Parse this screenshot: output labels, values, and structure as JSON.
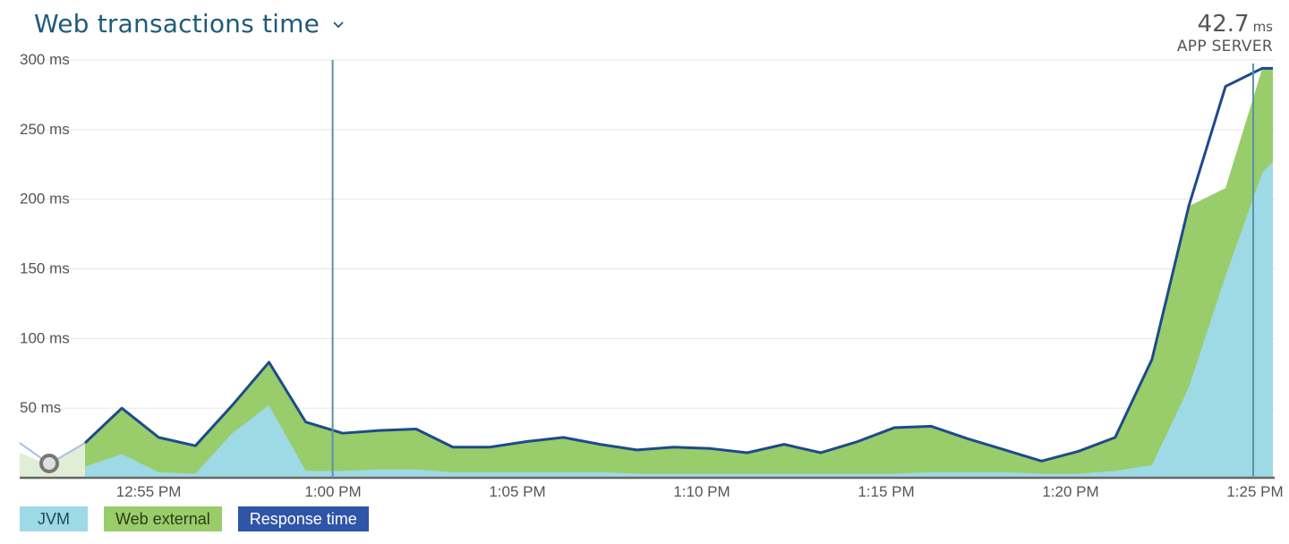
{
  "header": {
    "title": "Web transactions time"
  },
  "summary": {
    "value": "42.7",
    "unit": "ms",
    "label": "APP SERVER"
  },
  "legend": [
    {
      "label": "JVM",
      "color": "#9ed9e6"
    },
    {
      "label": "Web external",
      "color": "#99cc6a"
    },
    {
      "label": "Response time",
      "color": "#2f55a8"
    }
  ],
  "chart_data": {
    "type": "area",
    "ylim": [
      0,
      300
    ],
    "y_ticks": [
      "300 ms",
      "250 ms",
      "200 ms",
      "150 ms",
      "100 ms",
      "50 ms"
    ],
    "x_ticks": [
      "12:55 PM",
      "1:00 PM",
      "1:05 PM",
      "1:10 PM",
      "1:15 PM",
      "1:20 PM",
      "1:25 PM"
    ],
    "x": [
      "12:53",
      "12:54",
      "12:55",
      "12:56",
      "12:57",
      "12:58",
      "12:59",
      "1:00",
      "1:01",
      "1:02",
      "1:03",
      "1:04",
      "1:05",
      "1:06",
      "1:07",
      "1:08",
      "1:09",
      "1:10",
      "1:11",
      "1:12",
      "1:13",
      "1:14",
      "1:15",
      "1:16",
      "1:17",
      "1:18",
      "1:19",
      "1:20",
      "1:21",
      "1:22",
      "1:23",
      "1:24",
      "1:25",
      "1:26"
    ],
    "series": [
      {
        "name": "JVM",
        "values": [
          8,
          17,
          4,
          3,
          32,
          52,
          5,
          5,
          6,
          6,
          4,
          4,
          4,
          4,
          4,
          3,
          3,
          3,
          3,
          3,
          3,
          3,
          3,
          4,
          4,
          4,
          3,
          3,
          5,
          9,
          65,
          145,
          219,
          227
        ]
      },
      {
        "name": "Web external",
        "values": [
          17,
          33,
          25,
          20,
          20,
          31,
          35,
          27,
          28,
          29,
          18,
          18,
          22,
          25,
          20,
          17,
          19,
          18,
          15,
          21,
          15,
          23,
          33,
          33,
          24,
          16,
          9,
          16,
          24,
          76,
          130,
          63,
          75,
          67
        ]
      },
      {
        "name": "Response time",
        "values": [
          25,
          50,
          29,
          23,
          52,
          83,
          40,
          32,
          34,
          35,
          22,
          22,
          26,
          29,
          24,
          20,
          22,
          21,
          18,
          24,
          18,
          26,
          36,
          37,
          28,
          20,
          12,
          19,
          29,
          85,
          195,
          281,
          294,
          294
        ]
      }
    ],
    "cursor_x": "12:59"
  }
}
